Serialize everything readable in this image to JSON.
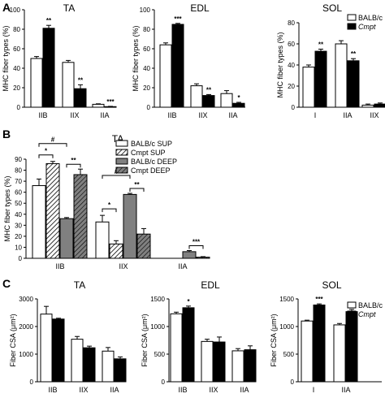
{
  "panels": [
    "A",
    "B",
    "C"
  ],
  "chart_data": [
    {
      "panel": "A",
      "type": "bar",
      "title": "TA",
      "ylabel": "MHC fiber types (%)",
      "ylim": [
        0,
        100
      ],
      "yticks": [
        0,
        20,
        40,
        60,
        80,
        100
      ],
      "categories": [
        "IIB",
        "IIX",
        "IIA"
      ],
      "series": [
        {
          "name": "BALB/c",
          "values": [
            50,
            46,
            3
          ],
          "errors": [
            2,
            2,
            0.5
          ],
          "fill": "#ffffff"
        },
        {
          "name": "Cmpt",
          "values": [
            81,
            19,
            0.6
          ],
          "errors": [
            3,
            4,
            0.3
          ],
          "fill": "#000000"
        }
      ],
      "significance": [
        "**",
        "**",
        "***"
      ]
    },
    {
      "panel": "A",
      "type": "bar",
      "title": "EDL",
      "ylabel": "MHC fiber types (%)",
      "ylim": [
        0,
        100
      ],
      "yticks": [
        0,
        20,
        40,
        60,
        80,
        100
      ],
      "categories": [
        "IIB",
        "IIX",
        "IIA"
      ],
      "series": [
        {
          "name": "BALB/c",
          "values": [
            64,
            22,
            14
          ],
          "errors": [
            2,
            2,
            3
          ],
          "fill": "#ffffff"
        },
        {
          "name": "Cmpt",
          "values": [
            85,
            12,
            4
          ],
          "errors": [
            1,
            1,
            1
          ],
          "fill": "#000000"
        }
      ],
      "significance": [
        "***",
        "**",
        "*"
      ]
    },
    {
      "panel": "A",
      "type": "bar",
      "title": "SOL",
      "ylabel": "MHC fiber types (%)",
      "ylim": [
        0,
        80
      ],
      "yticks": [
        0,
        20,
        40,
        60,
        80
      ],
      "categories": [
        "I",
        "IIA",
        "IIX"
      ],
      "series": [
        {
          "name": "BALB/c",
          "values": [
            38,
            60,
            2
          ],
          "errors": [
            2,
            3,
            1
          ],
          "fill": "#ffffff"
        },
        {
          "name": "Cmpt",
          "values": [
            53,
            44,
            3
          ],
          "errors": [
            2,
            2,
            1
          ],
          "fill": "#000000"
        }
      ],
      "significance": [
        "**",
        "**",
        ""
      ],
      "legend": {
        "position": "top-right",
        "labels": [
          "BALB/c",
          "Cmpt"
        ]
      }
    },
    {
      "panel": "B",
      "type": "bar",
      "title": "TA",
      "ylabel": "MHC fiber types (%)",
      "ylim": [
        0,
        90
      ],
      "yticks": [
        0,
        10,
        20,
        30,
        40,
        50,
        60,
        70,
        80,
        90
      ],
      "categories": [
        "IIB",
        "IIX",
        "IIA"
      ],
      "series": [
        {
          "name": "BALB/c SUP",
          "values": [
            66,
            33,
            0
          ],
          "errors": [
            6,
            6,
            0
          ],
          "fill": "#ffffff",
          "hatch": false
        },
        {
          "name": "Cmpt SUP",
          "values": [
            86,
            13,
            0
          ],
          "errors": [
            2,
            3,
            0
          ],
          "fill": "#ffffff",
          "hatch": true
        },
        {
          "name": "BALB/c DEEP",
          "values": [
            36,
            58,
            6
          ],
          "errors": [
            1,
            1,
            1
          ],
          "fill": "#808080",
          "hatch": false
        },
        {
          "name": "Cmpt DEEP",
          "values": [
            76,
            22,
            1
          ],
          "errors": [
            5,
            5,
            0.5
          ],
          "fill": "#808080",
          "hatch": true
        }
      ],
      "comparisons": [
        {
          "label": "#",
          "from": 0,
          "to": 2,
          "cat": 0
        },
        {
          "label": "*",
          "from": 0,
          "to": 1,
          "cat": 0
        },
        {
          "label": "**",
          "from": 2,
          "to": 3,
          "cat": 0
        },
        {
          "label": "#",
          "from": 0,
          "to": 2,
          "cat": 1
        },
        {
          "label": "*",
          "from": 0,
          "to": 1,
          "cat": 1
        },
        {
          "label": "**",
          "from": 2,
          "to": 3,
          "cat": 1
        },
        {
          "label": "***",
          "from": 2,
          "to": 3,
          "cat": 2
        }
      ],
      "legend": {
        "position": "top-right",
        "labels": [
          "BALB/c SUP",
          "Cmpt SUP",
          "BALB/c DEEP",
          "Cmpt DEEP"
        ]
      }
    },
    {
      "panel": "C",
      "type": "bar",
      "title": "TA",
      "ylabel": "Fiber CSA (μm²)",
      "ylim": [
        0,
        3000
      ],
      "yticks": [
        0,
        1000,
        2000,
        3000
      ],
      "categories": [
        "IIB",
        "IIX",
        "IIA"
      ],
      "series": [
        {
          "name": "BALB/c",
          "values": [
            2450,
            1540,
            1110
          ],
          "errors": [
            280,
            100,
            130
          ],
          "fill": "#ffffff"
        },
        {
          "name": "Cmpt",
          "values": [
            2270,
            1230,
            830
          ],
          "errors": [
            30,
            60,
            70
          ],
          "fill": "#000000"
        }
      ],
      "significance": [
        "",
        "",
        ""
      ]
    },
    {
      "panel": "C",
      "type": "bar",
      "title": "EDL",
      "ylabel": "Fiber CSA (μm²)",
      "ylim": [
        0,
        1500
      ],
      "yticks": [
        0,
        500,
        1000,
        1500
      ],
      "categories": [
        "IIB",
        "IIX",
        "IIA"
      ],
      "series": [
        {
          "name": "BALB/c",
          "values": [
            1230,
            730,
            560
          ],
          "errors": [
            30,
            40,
            40
          ],
          "fill": "#ffffff"
        },
        {
          "name": "Cmpt",
          "values": [
            1340,
            720,
            580
          ],
          "errors": [
            30,
            90,
            70
          ],
          "fill": "#000000"
        }
      ],
      "significance": [
        "*",
        "",
        ""
      ]
    },
    {
      "panel": "C",
      "type": "bar",
      "title": "SOL",
      "ylabel": "Fiber CSA (μm²)",
      "ylim": [
        0,
        1500
      ],
      "yticks": [
        0,
        500,
        1000,
        1500
      ],
      "categories": [
        "I",
        "IIA"
      ],
      "series": [
        {
          "name": "BALB/c",
          "values": [
            1100,
            1030
          ],
          "errors": [
            15,
            25
          ],
          "fill": "#ffffff"
        },
        {
          "name": "Cmpt",
          "values": [
            1390,
            1270
          ],
          "errors": [
            20,
            40
          ],
          "fill": "#000000"
        }
      ],
      "significance": [
        "***",
        "**"
      ],
      "legend": {
        "position": "top-right",
        "labels": [
          "BALB/c",
          "Cmpt"
        ]
      }
    }
  ]
}
